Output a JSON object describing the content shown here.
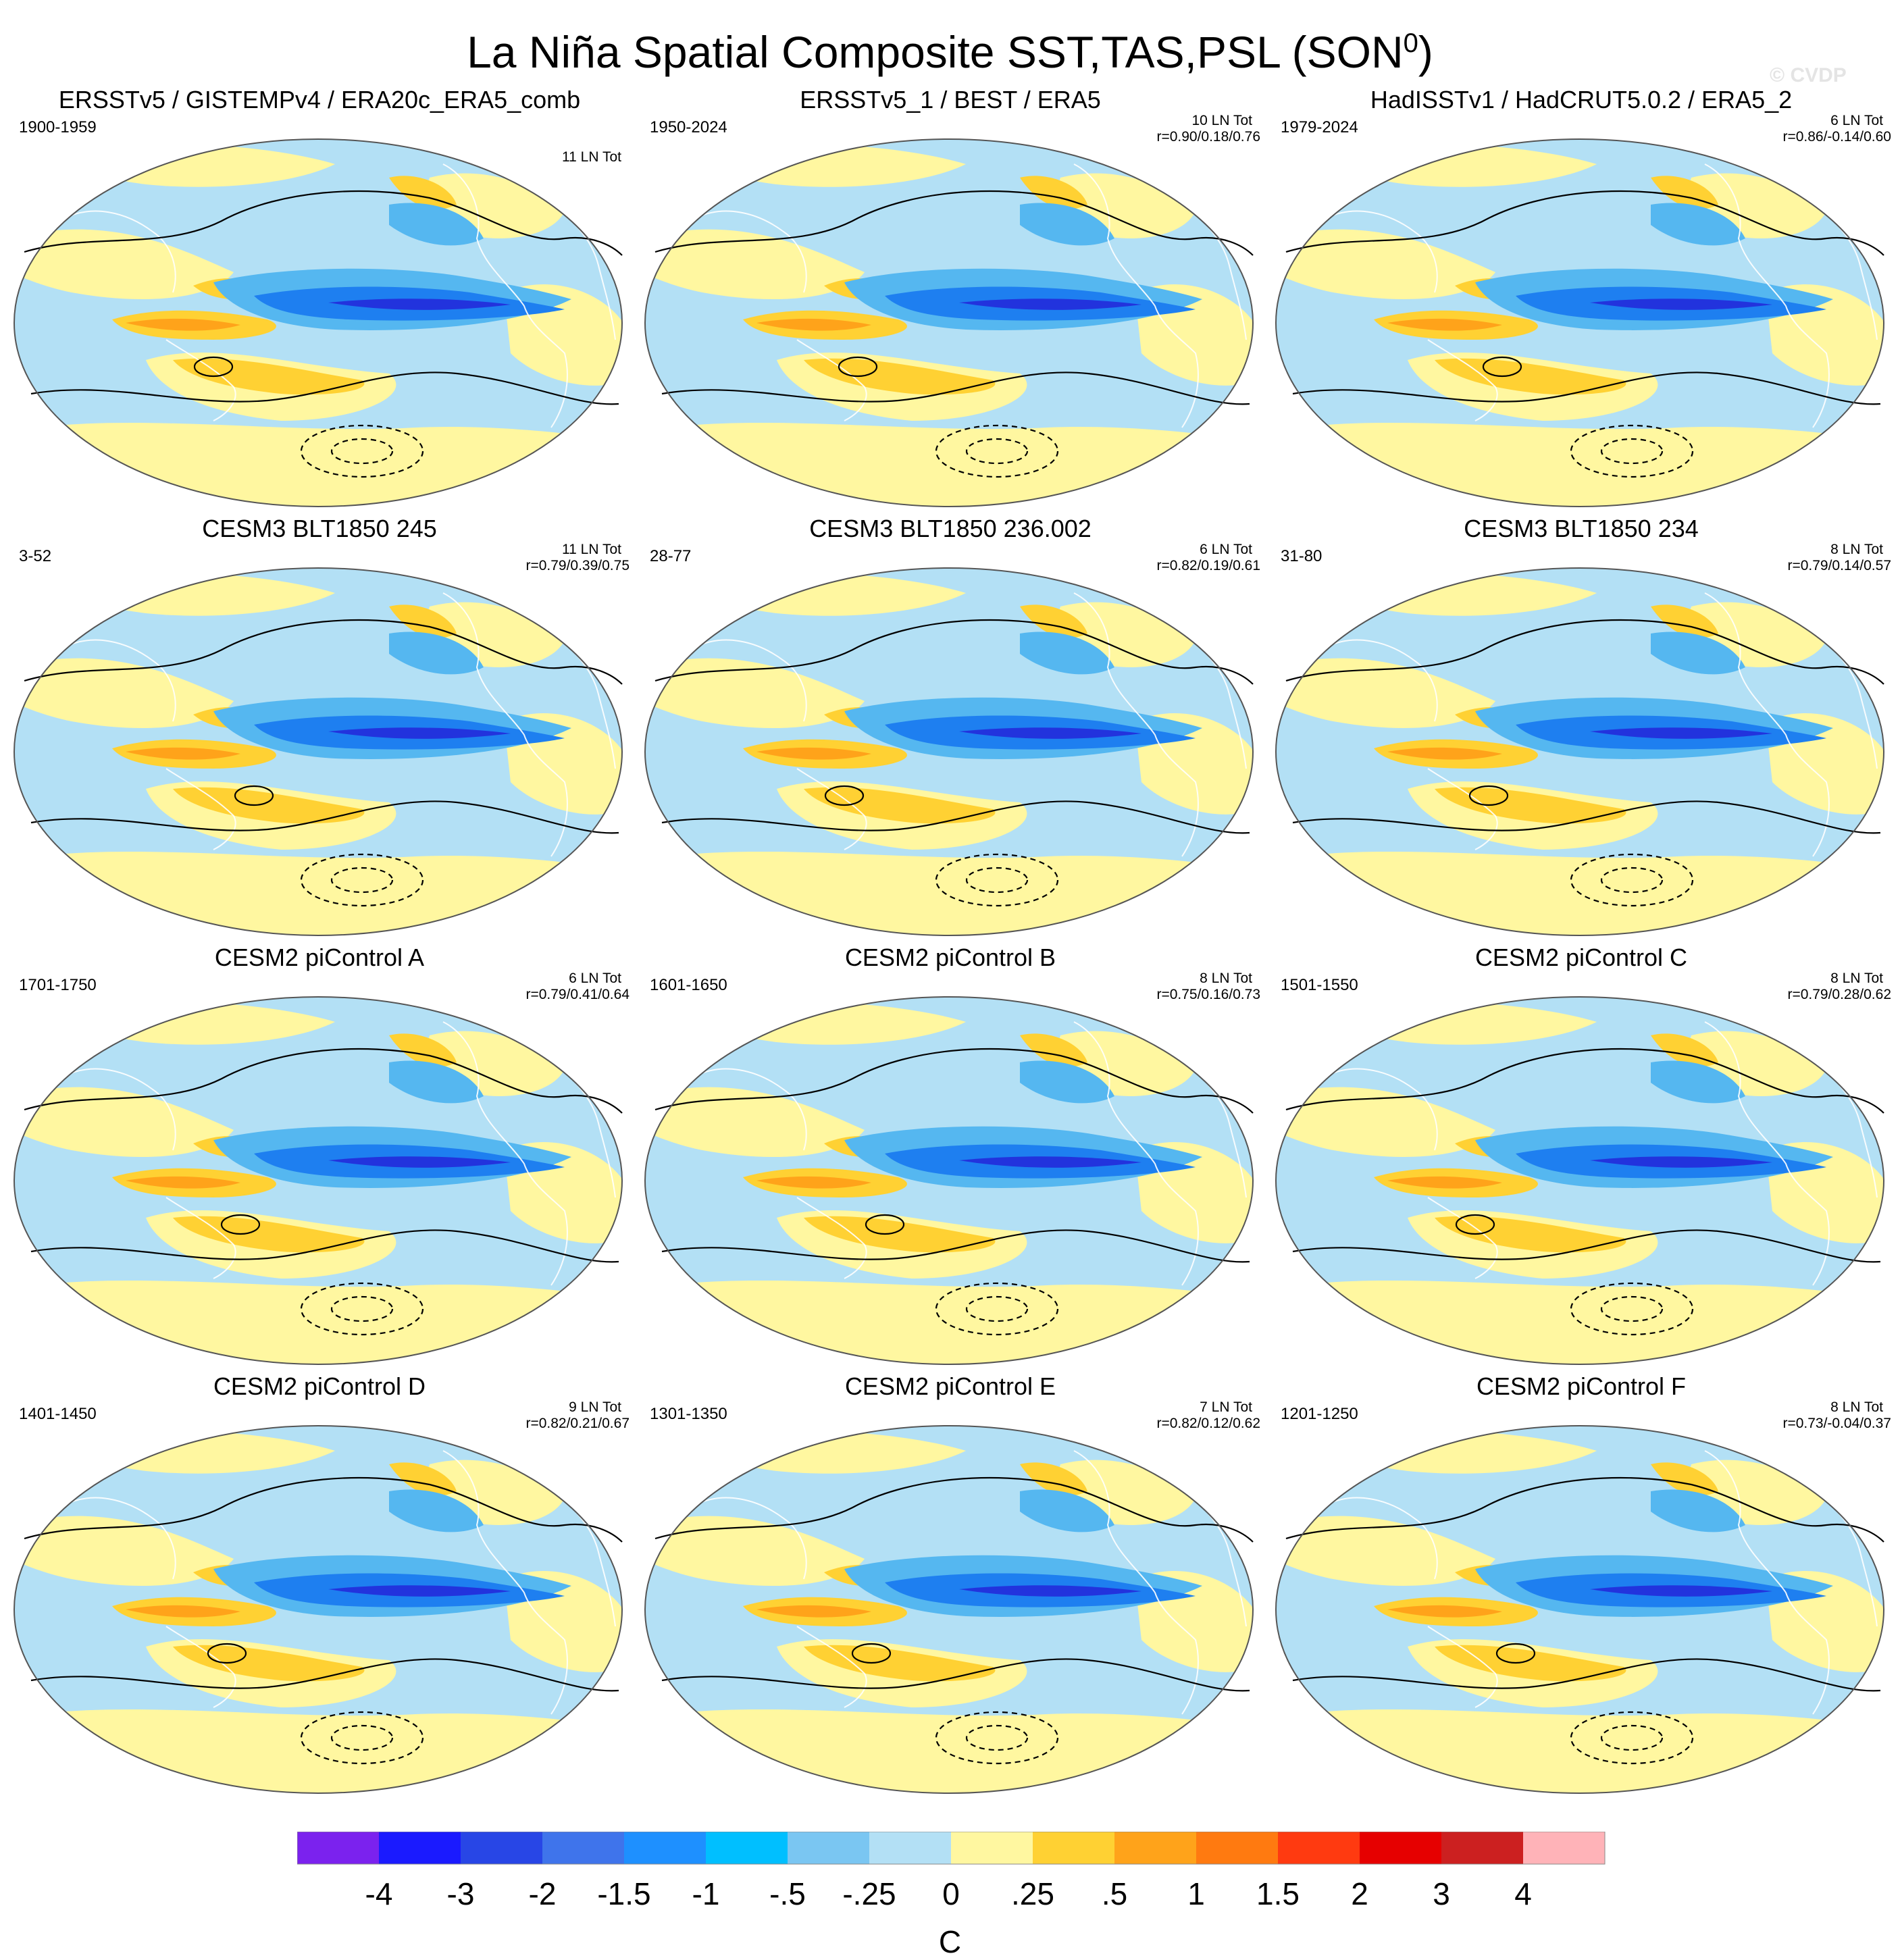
{
  "title": {
    "main": "La Niña Spatial Composite SST,TAS,PSL (SON",
    "sup": "0",
    "close": ")"
  },
  "watermark": "© CVDP",
  "panels": [
    {
      "title": "ERSSTv5 / GISTEMPv4 / ERA20c_ERA5_comb",
      "years": "1900-1959",
      "count": "11 LN Tot",
      "r": ""
    },
    {
      "title": "ERSSTv5_1 / BEST / ERA5",
      "years": "1950-2024",
      "count": "10 LN Tot",
      "r": "r=0.90/0.18/0.76"
    },
    {
      "title": "HadISSTv1 / HadCRUT5.0.2 / ERA5_2",
      "years": "1979-2024",
      "count": "6 LN Tot",
      "r": "r=0.86/-0.14/0.60"
    },
    {
      "title": "CESM3 BLT1850 245",
      "years": "3-52",
      "count": "11 LN Tot",
      "r": "r=0.79/0.39/0.75"
    },
    {
      "title": "CESM3 BLT1850 236.002",
      "years": "28-77",
      "count": "6 LN Tot",
      "r": "r=0.82/0.19/0.61"
    },
    {
      "title": "CESM3 BLT1850 234",
      "years": "31-80",
      "count": "8 LN Tot",
      "r": "r=0.79/0.14/0.57"
    },
    {
      "title": "CESM2 piControl A",
      "years": "1701-1750",
      "count": "6 LN Tot",
      "r": "r=0.79/0.41/0.64"
    },
    {
      "title": "CESM2 piControl B",
      "years": "1601-1650",
      "count": "8 LN Tot",
      "r": "r=0.75/0.16/0.73"
    },
    {
      "title": "CESM2 piControl C",
      "years": "1501-1550",
      "count": "8 LN Tot",
      "r": "r=0.79/0.28/0.62"
    },
    {
      "title": "CESM2 piControl D",
      "years": "1401-1450",
      "count": "9 LN Tot",
      "r": "r=0.82/0.21/0.67"
    },
    {
      "title": "CESM2 piControl E",
      "years": "1301-1350",
      "count": "7 LN Tot",
      "r": "r=0.82/0.12/0.62"
    },
    {
      "title": "CESM2 piControl F",
      "years": "1201-1250",
      "count": "8 LN Tot",
      "r": "r=0.73/-0.04/0.37"
    }
  ],
  "colorbar": {
    "unit": "C",
    "labels": [
      "-4",
      "-3",
      "-2",
      "-1.5",
      "-1",
      "-.5",
      "-.25",
      "0",
      ".25",
      ".5",
      "1",
      "1.5",
      "2",
      "3",
      "4"
    ],
    "colors": [
      "#7b22ee",
      "#1a1aff",
      "#2846e6",
      "#3f74eb",
      "#1e90ff",
      "#00bfff",
      "#7ac6f2",
      "#b3e0f5",
      "#fff7a0",
      "#ffd133",
      "#ffa31a",
      "#ff7a10",
      "#ff3a10",
      "#e60000",
      "#cc2020",
      "#ffb3b8"
    ]
  },
  "palette": {
    "blue_deep": "#2233dd",
    "blue_mid": "#1e7ff0",
    "blue_light": "#55b7f0",
    "blue_pale": "#b3e0f5",
    "yellow": "#fff7a0",
    "gold": "#ffd133",
    "orange": "#ffa31a",
    "red": "#e8380e"
  }
}
